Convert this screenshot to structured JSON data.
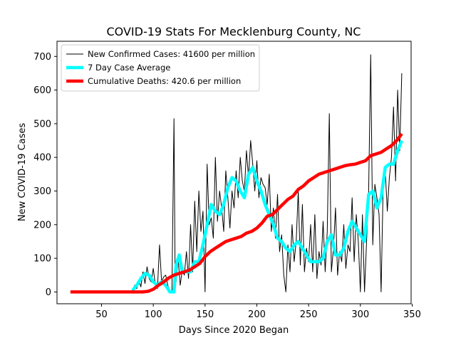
{
  "chart_data": {
    "type": "line",
    "title": "COVID-19 Stats For Mecklenburg County, NC",
    "xlabel": "Days Since 2020 Began",
    "ylabel": "New COVID-19 Cases",
    "xlim": [
      7,
      349
    ],
    "ylim": [
      -35,
      745
    ],
    "xticks": [
      50,
      100,
      150,
      200,
      250,
      300,
      350
    ],
    "yticks": [
      0,
      100,
      200,
      300,
      400,
      500,
      600,
      700
    ],
    "grid": false,
    "legend_position": "top-left",
    "series": [
      {
        "name": "New Confirmed Cases: 41600 per million",
        "style": "thin-line",
        "color": "#000000",
        "x": [
          20,
          30,
          40,
          50,
          60,
          70,
          78,
          80,
          82,
          84,
          86,
          88,
          90,
          92,
          94,
          96,
          98,
          100,
          102,
          104,
          106,
          108,
          110,
          112,
          114,
          116,
          118,
          120,
          121,
          122,
          124,
          126,
          128,
          130,
          132,
          134,
          136,
          138,
          140,
          142,
          144,
          146,
          148,
          150,
          152,
          154,
          156,
          158,
          160,
          162,
          164,
          166,
          168,
          170,
          172,
          174,
          176,
          178,
          180,
          182,
          184,
          186,
          188,
          190,
          192,
          194,
          196,
          198,
          200,
          202,
          204,
          206,
          208,
          210,
          212,
          214,
          216,
          218,
          220,
          222,
          224,
          226,
          228,
          230,
          232,
          234,
          236,
          238,
          240,
          242,
          244,
          246,
          248,
          250,
          252,
          254,
          256,
          258,
          260,
          262,
          264,
          266,
          268,
          270,
          272,
          274,
          276,
          278,
          280,
          282,
          284,
          286,
          288,
          290,
          292,
          294,
          296,
          298,
          300,
          302,
          304,
          306,
          308,
          310,
          312,
          314,
          316,
          318,
          320,
          322,
          324,
          326,
          328,
          330,
          332,
          334,
          336,
          338,
          340
        ],
        "values": [
          0,
          0,
          0,
          0,
          0,
          0,
          0,
          5,
          20,
          10,
          35,
          15,
          60,
          25,
          75,
          40,
          30,
          70,
          20,
          10,
          140,
          30,
          45,
          50,
          20,
          0,
          0,
          515,
          60,
          30,
          100,
          20,
          65,
          50,
          120,
          40,
          200,
          60,
          270,
          120,
          300,
          180,
          240,
          0,
          380,
          200,
          220,
          160,
          400,
          210,
          300,
          250,
          180,
          360,
          280,
          190,
          300,
          250,
          360,
          280,
          400,
          330,
          300,
          420,
          340,
          450,
          380,
          300,
          390,
          280,
          340,
          320,
          310,
          260,
          350,
          180,
          250,
          160,
          290,
          120,
          170,
          50,
          0,
          140,
          60,
          200,
          90,
          150,
          300,
          80,
          260,
          60,
          130,
          90,
          200,
          60,
          230,
          40,
          120,
          80,
          210,
          60,
          180,
          530,
          60,
          130,
          250,
          50,
          120,
          90,
          200,
          70,
          140,
          120,
          280,
          90,
          230,
          150,
          0,
          230,
          0,
          150,
          300,
          705,
          140,
          320,
          280,
          230,
          0,
          320,
          360,
          240,
          340,
          400,
          550,
          330,
          600,
          420,
          650
        ]
      },
      {
        "name": "7 Day Case Average",
        "style": "thick-line",
        "color": "#00ffff",
        "x": [
          80,
          84,
          88,
          92,
          96,
          100,
          104,
          108,
          112,
          116,
          120,
          122,
          125,
          128,
          132,
          136,
          140,
          144,
          148,
          152,
          156,
          160,
          164,
          168,
          172,
          176,
          180,
          184,
          188,
          192,
          196,
          200,
          204,
          208,
          212,
          216,
          220,
          224,
          228,
          232,
          236,
          240,
          244,
          248,
          252,
          256,
          260,
          264,
          268,
          272,
          276,
          280,
          284,
          288,
          292,
          296,
          300,
          304,
          308,
          312,
          316,
          320,
          324,
          328,
          332,
          336,
          340
        ],
        "values": [
          5,
          20,
          40,
          55,
          50,
          30,
          20,
          30,
          20,
          0,
          0,
          80,
          110,
          60,
          60,
          60,
          90,
          90,
          140,
          200,
          260,
          240,
          230,
          260,
          310,
          340,
          330,
          300,
          280,
          350,
          370,
          330,
          300,
          260,
          230,
          200,
          160,
          150,
          130,
          120,
          140,
          150,
          130,
          110,
          90,
          90,
          90,
          100,
          150,
          170,
          110,
          110,
          130,
          180,
          210,
          190,
          170,
          150,
          290,
          300,
          250,
          280,
          370,
          380,
          380,
          420,
          450
        ]
      },
      {
        "name": "Cumulative Deaths: 420.6 per million",
        "style": "thick-line",
        "color": "#ff0000",
        "x": [
          20,
          40,
          60,
          80,
          90,
          95,
          100,
          105,
          110,
          115,
          120,
          125,
          130,
          135,
          140,
          145,
          150,
          155,
          160,
          165,
          170,
          175,
          180,
          185,
          190,
          195,
          200,
          205,
          210,
          215,
          220,
          225,
          230,
          235,
          240,
          245,
          250,
          255,
          260,
          265,
          270,
          275,
          280,
          285,
          290,
          295,
          300,
          305,
          310,
          315,
          320,
          325,
          330,
          335,
          340
        ],
        "values": [
          0,
          0,
          0,
          0,
          0,
          2,
          8,
          20,
          30,
          42,
          50,
          55,
          60,
          65,
          75,
          85,
          105,
          120,
          130,
          140,
          150,
          155,
          160,
          165,
          175,
          180,
          190,
          205,
          225,
          230,
          245,
          260,
          275,
          285,
          305,
          315,
          330,
          340,
          350,
          355,
          360,
          365,
          370,
          375,
          378,
          380,
          385,
          390,
          405,
          410,
          415,
          425,
          435,
          450,
          470
        ]
      }
    ]
  }
}
